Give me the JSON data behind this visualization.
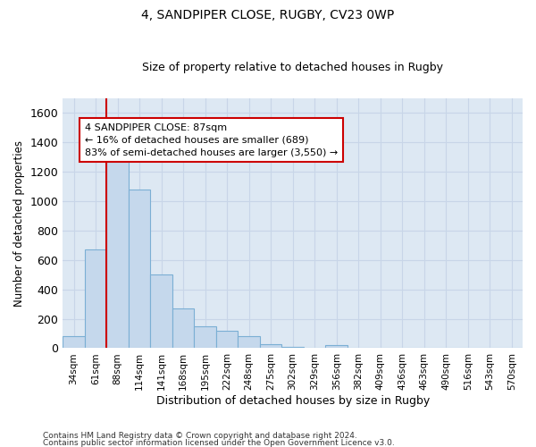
{
  "title1": "4, SANDPIPER CLOSE, RUGBY, CV23 0WP",
  "title2": "Size of property relative to detached houses in Rugby",
  "xlabel": "Distribution of detached houses by size in Rugby",
  "ylabel": "Number of detached properties",
  "bar_color": "#c5d8ec",
  "bar_edge_color": "#7bafd4",
  "background_color": "#dde8f3",
  "grid_color": "#c8d5e8",
  "categories": [
    "34sqm",
    "61sqm",
    "88sqm",
    "114sqm",
    "141sqm",
    "168sqm",
    "195sqm",
    "222sqm",
    "248sqm",
    "275sqm",
    "302sqm",
    "329sqm",
    "356sqm",
    "382sqm",
    "409sqm",
    "436sqm",
    "463sqm",
    "490sqm",
    "516sqm",
    "543sqm",
    "570sqm"
  ],
  "values": [
    80,
    670,
    1350,
    1080,
    500,
    270,
    150,
    120,
    80,
    30,
    10,
    3,
    20,
    2,
    2,
    2,
    2,
    2,
    2,
    2,
    2
  ],
  "ylim": [
    0,
    1700
  ],
  "yticks": [
    0,
    200,
    400,
    600,
    800,
    1000,
    1200,
    1400,
    1600
  ],
  "marker_bin_index": 2,
  "marker_color": "#cc0000",
  "annotation_text": "4 SANDPIPER CLOSE: 87sqm\n← 16% of detached houses are smaller (689)\n83% of semi-detached houses are larger (3,550) →",
  "annotation_box_color": "#ffffff",
  "annotation_box_edge": "#cc0000",
  "footer1": "Contains HM Land Registry data © Crown copyright and database right 2024.",
  "footer2": "Contains public sector information licensed under the Open Government Licence v3.0."
}
